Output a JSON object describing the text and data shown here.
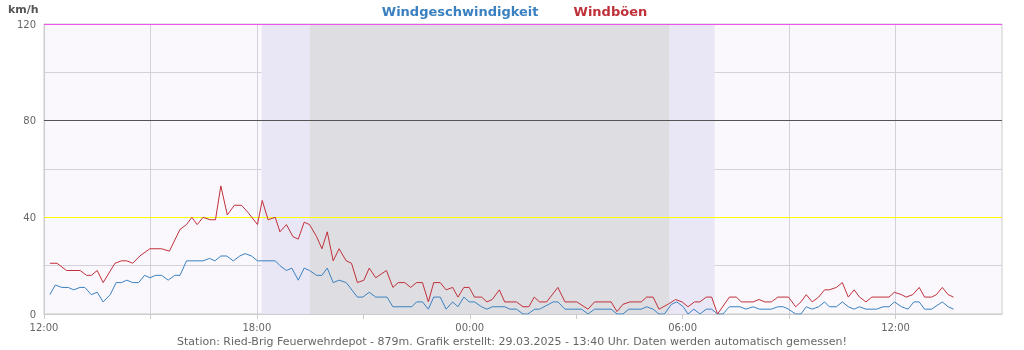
{
  "chart_data": {
    "type": "line",
    "ylabel": "km/h",
    "annotations": [
      "Station: Ried-Brig Feuerwehrdepot - 879m. Grafik erstellt: 29.03.2025 - 13:40 Uhr. Daten werden automatisch gemessen!"
    ],
    "xlim": [
      "2025-03-28T12:00",
      "2025-03-29T15:00"
    ],
    "xticks": [
      {
        "value": "2025-03-28T12:00",
        "label": "12:00"
      },
      {
        "value": "2025-03-28T15:00",
        "label": null
      },
      {
        "value": "2025-03-28T18:00",
        "label": "18:00"
      },
      {
        "value": "2025-03-28T21:00",
        "label": null
      },
      {
        "value": "2025-03-29T00:00",
        "label": "00:00"
      },
      {
        "value": "2025-03-29T03:00",
        "label": null
      },
      {
        "value": "2025-03-29T06:00",
        "label": "06:00"
      },
      {
        "value": "2025-03-29T09:00",
        "label": null
      },
      {
        "value": "2025-03-29T12:00",
        "label": "12:00"
      }
    ],
    "ylim": [
      0,
      120
    ],
    "yticks": [
      0,
      {
        "value": 20,
        "label": null
      },
      40,
      {
        "value": 60,
        "label": null
      },
      80,
      {
        "value": 100,
        "label": null
      },
      120
    ],
    "grid": true,
    "legend": "top",
    "marker": "none",
    "line_style": "solid",
    "bands": [
      {
        "axis": "x",
        "from": "2025-03-28T18:08",
        "to": "2025-03-28T19:29",
        "label": null,
        "color": "#e9e7f5"
      },
      {
        "axis": "x",
        "from": "2025-03-28T19:29",
        "to": "2025-03-29T05:38",
        "label": null,
        "color": "#dedee2"
      },
      {
        "axis": "x",
        "from": "2025-03-29T05:38",
        "to": "2025-03-29T06:54",
        "label": null,
        "color": "#e9e7f5"
      }
    ],
    "ref_lines": [
      {
        "axis": "y",
        "value": 40,
        "label": null,
        "color": "#ffff00"
      },
      {
        "axis": "y",
        "value": 80,
        "label": null,
        "color": "#555555"
      },
      {
        "axis": "y",
        "value": 120,
        "label": null,
        "color": "#ee55ee"
      }
    ],
    "series": [
      {
        "name": "Windgeschwindigkeit",
        "color": "#3a80c0",
        "x": [
          "2025-03-28T12:10",
          "2025-03-28T12:19",
          "2025-03-28T12:30",
          "2025-03-28T12:41",
          "2025-03-28T12:50",
          "2025-03-28T13:01",
          "2025-03-28T13:09",
          "2025-03-28T13:20",
          "2025-03-28T13:30",
          "2025-03-28T13:40",
          "2025-03-28T13:52",
          "2025-03-28T14:02",
          "2025-03-28T14:11",
          "2025-03-28T14:20",
          "2025-03-28T14:30",
          "2025-03-28T14:40",
          "2025-03-28T14:50",
          "2025-03-28T14:59",
          "2025-03-28T15:09",
          "2025-03-28T15:19",
          "2025-03-28T15:30",
          "2025-03-28T15:41",
          "2025-03-28T15:50",
          "2025-03-28T16:01",
          "2025-03-28T16:29",
          "2025-03-28T16:40",
          "2025-03-28T16:49",
          "2025-03-28T16:59",
          "2025-03-28T17:09",
          "2025-03-28T17:20",
          "2025-03-28T17:31",
          "2025-03-28T17:40",
          "2025-03-28T17:51",
          "2025-03-28T18:01",
          "2025-03-28T18:31",
          "2025-03-28T18:39",
          "2025-03-28T18:50",
          "2025-03-28T18:59",
          "2025-03-28T19:10",
          "2025-03-28T19:20",
          "2025-03-28T19:29",
          "2025-03-28T19:41",
          "2025-03-28T19:50",
          "2025-03-28T19:59",
          "2025-03-28T20:09",
          "2025-03-28T20:19",
          "2025-03-28T20:31",
          "2025-03-28T20:50",
          "2025-03-28T20:59",
          "2025-03-28T21:10",
          "2025-03-28T21:21",
          "2025-03-28T21:40",
          "2025-03-28T21:50",
          "2025-03-28T22:22",
          "2025-03-28T22:30",
          "2025-03-28T22:40",
          "2025-03-28T22:50",
          "2025-03-28T22:59",
          "2025-03-28T23:10",
          "2025-03-28T23:20",
          "2025-03-28T23:31",
          "2025-03-28T23:40",
          "2025-03-28T23:50",
          "2025-03-28T23:59",
          "2025-03-29T00:08",
          "2025-03-29T00:20",
          "2025-03-29T00:29",
          "2025-03-29T00:38",
          "2025-03-29T00:59",
          "2025-03-29T01:08",
          "2025-03-29T01:19",
          "2025-03-29T01:30",
          "2025-03-29T01:38",
          "2025-03-29T01:50",
          "2025-03-29T01:58",
          "2025-03-29T02:21",
          "2025-03-29T02:29",
          "2025-03-29T02:41",
          "2025-03-29T03:09",
          "2025-03-29T03:20",
          "2025-03-29T03:31",
          "2025-03-29T03:59",
          "2025-03-29T04:09",
          "2025-03-29T04:19",
          "2025-03-29T04:29",
          "2025-03-29T04:50",
          "2025-03-29T04:59",
          "2025-03-29T05:10",
          "2025-03-29T05:20",
          "2025-03-29T05:29",
          "2025-03-29T05:41",
          "2025-03-29T05:50",
          "2025-03-29T06:01",
          "2025-03-29T06:09",
          "2025-03-29T06:19",
          "2025-03-29T06:29",
          "2025-03-29T06:40",
          "2025-03-29T06:49",
          "2025-03-29T06:59",
          "2025-03-29T07:08",
          "2025-03-29T07:19",
          "2025-03-29T07:37",
          "2025-03-29T07:47",
          "2025-03-29T07:59",
          "2025-03-29T08:10",
          "2025-03-29T08:30",
          "2025-03-29T08:41",
          "2025-03-29T08:50",
          "2025-03-29T08:59",
          "2025-03-29T09:11",
          "2025-03-29T09:20",
          "2025-03-29T09:29",
          "2025-03-29T09:39",
          "2025-03-29T09:50",
          "2025-03-29T10:00",
          "2025-03-29T10:08",
          "2025-03-29T10:20",
          "2025-03-29T10:30",
          "2025-03-29T10:40",
          "2025-03-29T10:50",
          "2025-03-29T10:59",
          "2025-03-29T11:10",
          "2025-03-29T11:28",
          "2025-03-29T11:39",
          "2025-03-29T11:49",
          "2025-03-29T11:58",
          "2025-03-29T12:10",
          "2025-03-29T12:21",
          "2025-03-29T12:31",
          "2025-03-29T12:40",
          "2025-03-29T12:49",
          "2025-03-29T13:01",
          "2025-03-29T13:19",
          "2025-03-29T13:29",
          "2025-03-29T13:38"
        ],
        "values": [
          8,
          12,
          11,
          11,
          10,
          11,
          11,
          8,
          9,
          5,
          8,
          13,
          13,
          14,
          13,
          13,
          16,
          15,
          16,
          16,
          14,
          16,
          16,
          22,
          22,
          23,
          22,
          24,
          24,
          22,
          24,
          25,
          24,
          22,
          22,
          20,
          18,
          19,
          14,
          19,
          18,
          16,
          16,
          19,
          13,
          14,
          13,
          7,
          7,
          9,
          7,
          7,
          3,
          3,
          5,
          5,
          2,
          7,
          7,
          2,
          5,
          3,
          7,
          5,
          5,
          3,
          2,
          3,
          3,
          2,
          2,
          0,
          0,
          2,
          2,
          5,
          5,
          2,
          2,
          0,
          2,
          2,
          0,
          0,
          2,
          2,
          3,
          2,
          0,
          0,
          4,
          5,
          3,
          0,
          2,
          0,
          2,
          2,
          0,
          0,
          3,
          3,
          2,
          3,
          2,
          2,
          3,
          3,
          2,
          0,
          0,
          3,
          2,
          3,
          5,
          3,
          3,
          5,
          3,
          2,
          3,
          2,
          2,
          3,
          3,
          5,
          3,
          2,
          5,
          5,
          2,
          2,
          5,
          3,
          2
        ]
      },
      {
        "name": "Windböen",
        "color": "#c0303a",
        "x": [
          "2025-03-28T12:10",
          "2025-03-28T12:22",
          "2025-03-28T12:38",
          "2025-03-28T13:01",
          "2025-03-28T13:12",
          "2025-03-28T13:20",
          "2025-03-28T13:30",
          "2025-03-28T13:40",
          "2025-03-28T14:00",
          "2025-03-28T14:11",
          "2025-03-28T14:20",
          "2025-03-28T14:30",
          "2025-03-28T14:42",
          "2025-03-28T14:59",
          "2025-03-28T15:19",
          "2025-03-28T15:32",
          "2025-03-28T15:50",
          "2025-03-28T16:01",
          "2025-03-28T16:10",
          "2025-03-28T16:19",
          "2025-03-28T16:29",
          "2025-03-28T16:41",
          "2025-03-28T16:50",
          "2025-03-28T16:59",
          "2025-03-28T17:10",
          "2025-03-28T17:22",
          "2025-03-28T17:34",
          "2025-03-28T17:45",
          "2025-03-28T18:01",
          "2025-03-28T18:09",
          "2025-03-28T18:19",
          "2025-03-28T18:31",
          "2025-03-28T18:39",
          "2025-03-28T18:50",
          "2025-03-28T19:01",
          "2025-03-28T19:10",
          "2025-03-28T19:20",
          "2025-03-28T19:29",
          "2025-03-28T19:41",
          "2025-03-28T19:50",
          "2025-03-28T19:59",
          "2025-03-28T20:09",
          "2025-03-28T20:19",
          "2025-03-28T20:31",
          "2025-03-28T20:40",
          "2025-03-28T20:50",
          "2025-03-28T21:01",
          "2025-03-28T21:10",
          "2025-03-28T21:21",
          "2025-03-28T21:39",
          "2025-03-28T21:50",
          "2025-03-28T21:59",
          "2025-03-28T22:10",
          "2025-03-28T22:20",
          "2025-03-28T22:30",
          "2025-03-28T22:40",
          "2025-03-28T22:50",
          "2025-03-28T22:59",
          "2025-03-28T23:10",
          "2025-03-28T23:20",
          "2025-03-28T23:31",
          "2025-03-28T23:40",
          "2025-03-28T23:50",
          "2025-03-28T23:59",
          "2025-03-29T00:08",
          "2025-03-29T00:20",
          "2025-03-29T00:29",
          "2025-03-29T00:38",
          "2025-03-29T00:50",
          "2025-03-29T00:59",
          "2025-03-29T01:19",
          "2025-03-29T01:30",
          "2025-03-29T01:40",
          "2025-03-29T01:49",
          "2025-03-29T01:58",
          "2025-03-29T02:10",
          "2025-03-29T02:29",
          "2025-03-29T02:41",
          "2025-03-29T03:01",
          "2025-03-29T03:20",
          "2025-03-29T03:31",
          "2025-03-29T03:59",
          "2025-03-29T04:09",
          "2025-03-29T04:19",
          "2025-03-29T04:31",
          "2025-03-29T04:50",
          "2025-03-29T04:59",
          "2025-03-29T05:10",
          "2025-03-29T05:20",
          "2025-03-29T05:35",
          "2025-03-29T05:48",
          "2025-03-29T05:59",
          "2025-03-29T06:09",
          "2025-03-29T06:20",
          "2025-03-29T06:29",
          "2025-03-29T06:40",
          "2025-03-29T06:49",
          "2025-03-29T06:59",
          "2025-03-29T07:19",
          "2025-03-29T07:31",
          "2025-03-29T07:39",
          "2025-03-29T07:59",
          "2025-03-29T08:09",
          "2025-03-29T08:19",
          "2025-03-29T08:30",
          "2025-03-29T08:41",
          "2025-03-29T08:59",
          "2025-03-29T09:11",
          "2025-03-29T09:20",
          "2025-03-29T09:29",
          "2025-03-29T09:39",
          "2025-03-29T09:50",
          "2025-03-29T10:00",
          "2025-03-29T10:08",
          "2025-03-29T10:20",
          "2025-03-29T10:30",
          "2025-03-29T10:40",
          "2025-03-29T10:50",
          "2025-03-29T10:59",
          "2025-03-29T11:10",
          "2025-03-29T11:20",
          "2025-03-29T11:49",
          "2025-03-29T11:58",
          "2025-03-29T12:10",
          "2025-03-29T12:18",
          "2025-03-29T12:29",
          "2025-03-29T12:40",
          "2025-03-29T12:49",
          "2025-03-29T13:01",
          "2025-03-29T13:09",
          "2025-03-29T13:19",
          "2025-03-29T13:29",
          "2025-03-29T13:38"
        ],
        "values": [
          21,
          21,
          18,
          18,
          16,
          16,
          18,
          13,
          21,
          22,
          22,
          21,
          24,
          27,
          27,
          26,
          35,
          37,
          40,
          37,
          40,
          39,
          39,
          53,
          41,
          45,
          45,
          42,
          37,
          47,
          39,
          40,
          34,
          37,
          32,
          31,
          38,
          37,
          32,
          27,
          34,
          22,
          27,
          22,
          21,
          13,
          14,
          19,
          15,
          18,
          11,
          13,
          13,
          11,
          13,
          13,
          5,
          13,
          13,
          10,
          11,
          7,
          11,
          11,
          7,
          7,
          5,
          6,
          10,
          5,
          5,
          3,
          3,
          7,
          5,
          5,
          11,
          5,
          5,
          2,
          5,
          5,
          1,
          4,
          5,
          5,
          7,
          7,
          2,
          4,
          6,
          5,
          3,
          5,
          5,
          7,
          7,
          0,
          7,
          7,
          5,
          5,
          6,
          5,
          5,
          7,
          7,
          3,
          5,
          8,
          5,
          7,
          10,
          10,
          11,
          13,
          7,
          10,
          7,
          5,
          7,
          7,
          9,
          8,
          7,
          8,
          11,
          7,
          7,
          8,
          11,
          8,
          7
        ]
      }
    ]
  }
}
